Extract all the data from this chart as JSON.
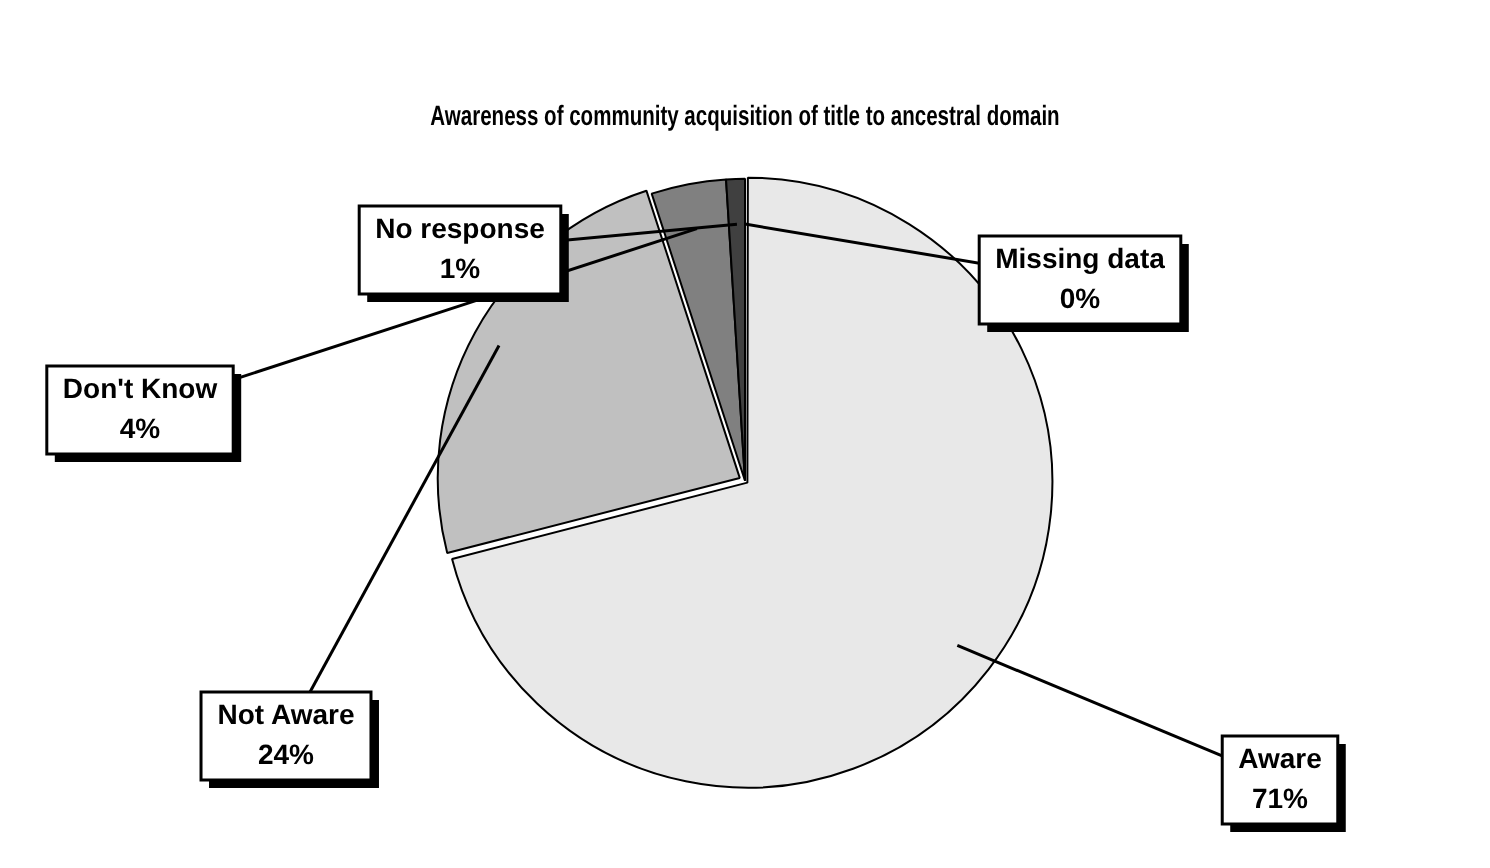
{
  "chart_data": {
    "type": "pie",
    "title": "Awareness of community acquisition of title to ancestral domain",
    "categories": [
      "Aware",
      "Not Aware",
      "Don't Know",
      "No response",
      "Missing data"
    ],
    "values": [
      71,
      24,
      4,
      1,
      0
    ],
    "colors": [
      "#e8e8e8",
      "#c0c0c0",
      "#808080",
      "#404040",
      "#000000"
    ],
    "value_labels": [
      "71%",
      "24%",
      "4%",
      "1%",
      "0%"
    ],
    "legend": false
  }
}
